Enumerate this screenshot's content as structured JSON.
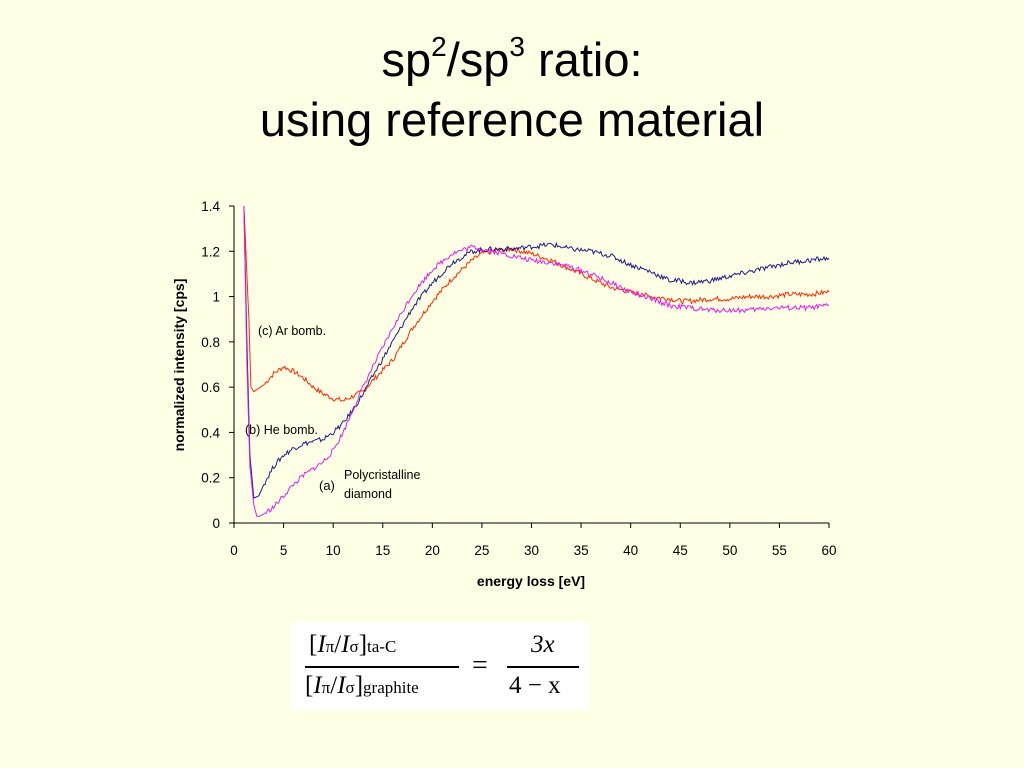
{
  "slide": {
    "title_line1_parts": [
      "sp",
      "2",
      "/sp",
      "3",
      " ratio:"
    ],
    "title_line2": "using reference material"
  },
  "chart_data": {
    "type": "line",
    "xlabel": "energy loss [eV]",
    "ylabel": "normalized intensity [cps]",
    "xlim": [
      0,
      60
    ],
    "ylim": [
      0,
      1.4
    ],
    "xticks": [
      0,
      5,
      10,
      15,
      20,
      25,
      30,
      35,
      40,
      45,
      50,
      55,
      60
    ],
    "yticks": [
      0,
      0.2,
      0.4,
      0.6,
      0.8,
      1,
      1.2,
      1.4
    ],
    "ytick_labels": [
      "0",
      "0.2",
      "0.4",
      "0.6",
      "0.8",
      "1",
      "1.2",
      "1.4"
    ],
    "grid": false,
    "series": [
      {
        "key": "c",
        "color": "#ff2a00",
        "x": [
          1.0,
          1.5,
          1.7,
          2.0,
          3.0,
          4.0,
          5.0,
          6.0,
          7.0,
          8.0,
          9.0,
          10.0,
          11.0,
          12.0,
          13.0,
          14.0,
          16.0,
          18.0,
          20.0,
          22.0,
          24.0,
          25.0,
          26.0,
          28.0,
          30.0,
          32.0,
          34.0,
          36.0,
          38.0,
          40.0,
          42.0,
          44.0,
          45.0,
          46.0,
          48.0,
          50.0,
          52.0,
          54.0,
          56.0,
          58.0,
          60.0
        ],
        "y": [
          1.4,
          0.9,
          0.6,
          0.58,
          0.61,
          0.66,
          0.69,
          0.67,
          0.64,
          0.6,
          0.57,
          0.55,
          0.54,
          0.56,
          0.58,
          0.63,
          0.72,
          0.86,
          0.98,
          1.08,
          1.16,
          1.19,
          1.2,
          1.21,
          1.19,
          1.16,
          1.12,
          1.08,
          1.04,
          1.02,
          1.0,
          0.99,
          0.98,
          0.98,
          0.99,
          0.99,
          1.0,
          1.0,
          1.01,
          1.01,
          1.02
        ]
      },
      {
        "key": "b",
        "color": "#1c1c8c",
        "x": [
          1.0,
          1.3,
          1.6,
          2.0,
          2.5,
          3.0,
          4.0,
          5.0,
          6.0,
          7.0,
          8.0,
          9.0,
          10.0,
          11.0,
          12.0,
          13.0,
          14.0,
          16.0,
          18.0,
          20.0,
          22.0,
          24.0,
          26.0,
          28.0,
          30.0,
          32.0,
          34.0,
          36.0,
          38.0,
          40.0,
          42.0,
          44.0,
          45.0,
          46.0,
          48.0,
          50.0,
          52.0,
          54.0,
          56.0,
          58.0,
          60.0
        ],
        "y": [
          1.4,
          0.8,
          0.3,
          0.11,
          0.12,
          0.17,
          0.25,
          0.3,
          0.33,
          0.35,
          0.36,
          0.37,
          0.4,
          0.44,
          0.5,
          0.57,
          0.65,
          0.8,
          0.95,
          1.06,
          1.15,
          1.2,
          1.21,
          1.21,
          1.22,
          1.23,
          1.21,
          1.2,
          1.18,
          1.14,
          1.11,
          1.07,
          1.07,
          1.06,
          1.07,
          1.09,
          1.11,
          1.13,
          1.15,
          1.16,
          1.17
        ]
      },
      {
        "key": "a",
        "color": "#e020e8",
        "x": [
          1.0,
          1.3,
          1.6,
          2.0,
          2.3,
          2.6,
          3.0,
          4.0,
          5.0,
          6.0,
          7.0,
          8.0,
          9.0,
          10.0,
          11.0,
          12.0,
          13.0,
          14.0,
          16.0,
          18.0,
          20.0,
          22.0,
          24.0,
          26.0,
          28.0,
          30.0,
          32.0,
          34.0,
          36.0,
          38.0,
          40.0,
          42.0,
          44.0,
          46.0,
          48.0,
          50.0,
          52.0,
          54.0,
          56.0,
          58.0,
          60.0
        ],
        "y": [
          1.4,
          0.7,
          0.25,
          0.08,
          0.03,
          0.03,
          0.04,
          0.07,
          0.12,
          0.17,
          0.21,
          0.24,
          0.27,
          0.32,
          0.4,
          0.5,
          0.6,
          0.69,
          0.86,
          1.01,
          1.12,
          1.19,
          1.22,
          1.2,
          1.18,
          1.16,
          1.15,
          1.13,
          1.1,
          1.06,
          1.02,
          0.99,
          0.96,
          0.95,
          0.94,
          0.94,
          0.94,
          0.95,
          0.95,
          0.95,
          0.96
        ]
      }
    ],
    "annotations": {
      "c_label": "(c) Ar bomb.",
      "b_label": "(b) He bomb.",
      "a_label": "(a)",
      "a_desc_line1": "Polycristalline",
      "a_desc_line2": "diamond"
    }
  },
  "formula": {
    "num_bracket_open": "[",
    "num_I_pi": "I",
    "pi_sub": "π",
    "slash": "/",
    "num_I_sigma": "I",
    "sigma_sub": "σ",
    "num_bracket_close": "]",
    "num_sub": "ta-C",
    "den_sub": "graphite",
    "equals": "=",
    "rhs_num": "3x",
    "rhs_den": "4 − x"
  }
}
